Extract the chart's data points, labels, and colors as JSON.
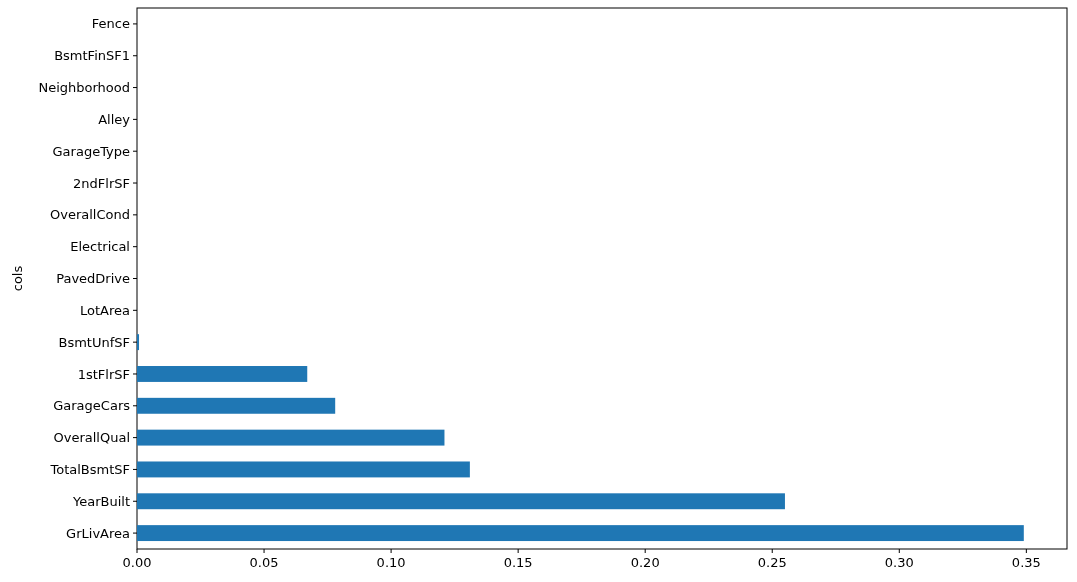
{
  "chart_data": {
    "type": "bar",
    "orientation": "horizontal",
    "ylabel": "cols",
    "categories": [
      "Fence",
      "BsmtFinSF1",
      "Neighborhood",
      "Alley",
      "GarageType",
      "2ndFlrSF",
      "OverallCond",
      "Electrical",
      "PavedDrive",
      "LotArea",
      "BsmtUnfSF",
      "1stFlrSF",
      "GarageCars",
      "OverallQual",
      "TotalBsmtSF",
      "YearBuilt",
      "GrLivArea"
    ],
    "values": [
      0,
      0,
      0,
      0,
      0,
      0,
      0,
      0,
      0,
      0,
      0.0008,
      0.067,
      0.078,
      0.121,
      0.131,
      0.255,
      0.349
    ],
    "color": "#1f77b4",
    "xlim": [
      0,
      0.366
    ],
    "xticks": [
      {
        "value": 0,
        "label": "0.00"
      },
      0.05,
      {
        "value": 0.1,
        "label": "0.10"
      },
      0.15,
      {
        "value": 0.2,
        "label": "0.20"
      },
      0.25,
      {
        "value": 0.3,
        "label": "0.30"
      },
      0.35
    ],
    "grid": false
  }
}
